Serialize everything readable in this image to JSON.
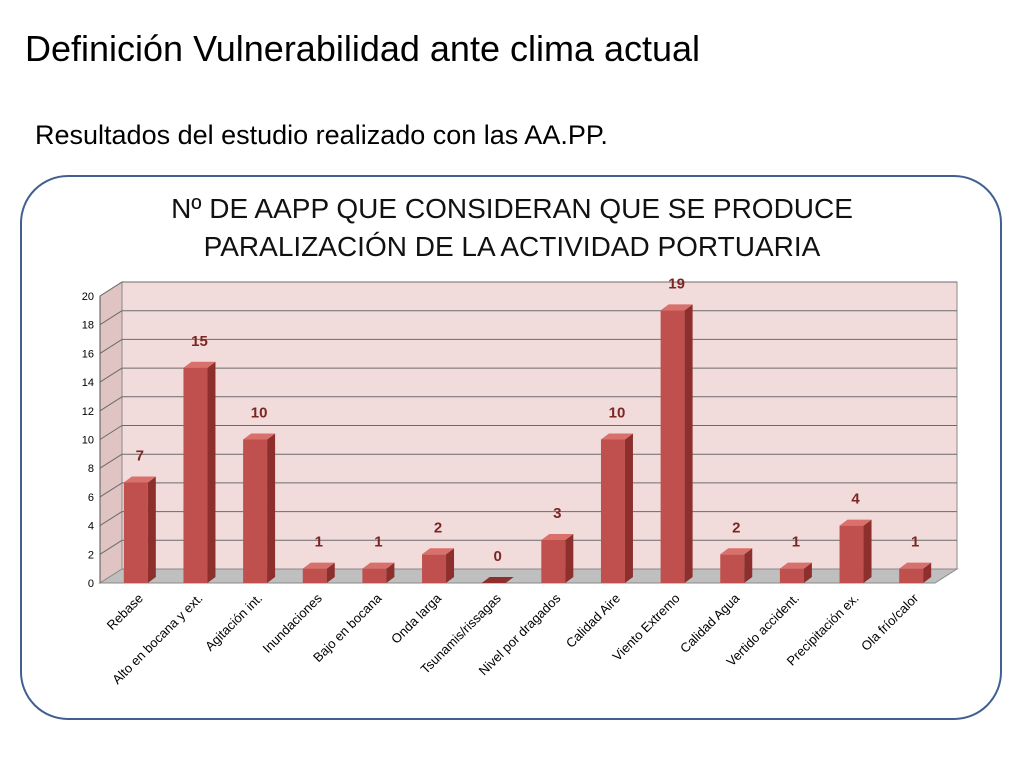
{
  "slide": {
    "title": "Definición Vulnerabilidad ante clima actual",
    "subtitle": "Resultados del estudio realizado con las AA.PP."
  },
  "chart_data": {
    "type": "bar",
    "title_lines": [
      "Nº DE AAPP QUE CONSIDERAN QUE SE PRODUCE",
      "PARALIZACIÓN DE LA  ACTIVIDAD PORTUARIA"
    ],
    "categories": [
      "Rebase",
      "Alto en bocana y ext.",
      "Agitación int.",
      "Inundaciones",
      "Bajo en bocana",
      "Onda larga",
      "Tsunamis/rissagas",
      "Nivel por dragados",
      "Calidad Aire",
      "Viento Extremo",
      "Calidad Agua",
      "Vertido accident.",
      "Precipitación ex.",
      "Ola frío/calor"
    ],
    "values": [
      7,
      15,
      10,
      1,
      1,
      2,
      0,
      3,
      10,
      19,
      2,
      1,
      4,
      1
    ],
    "ylim": [
      0,
      20
    ],
    "yticks": [
      "0",
      "2",
      "4",
      "6",
      "8",
      "10",
      "12",
      "14",
      "16",
      "18",
      "20"
    ],
    "grid": true,
    "colors": {
      "bar_front": "#c0504d",
      "bar_side": "#8c2f2d",
      "bar_top": "#d9706c",
      "data_label": "#7b2624",
      "back_wall": "#f2dcdb",
      "side_wall": "#e0c4c3",
      "floor": "#bfbfbf"
    }
  }
}
